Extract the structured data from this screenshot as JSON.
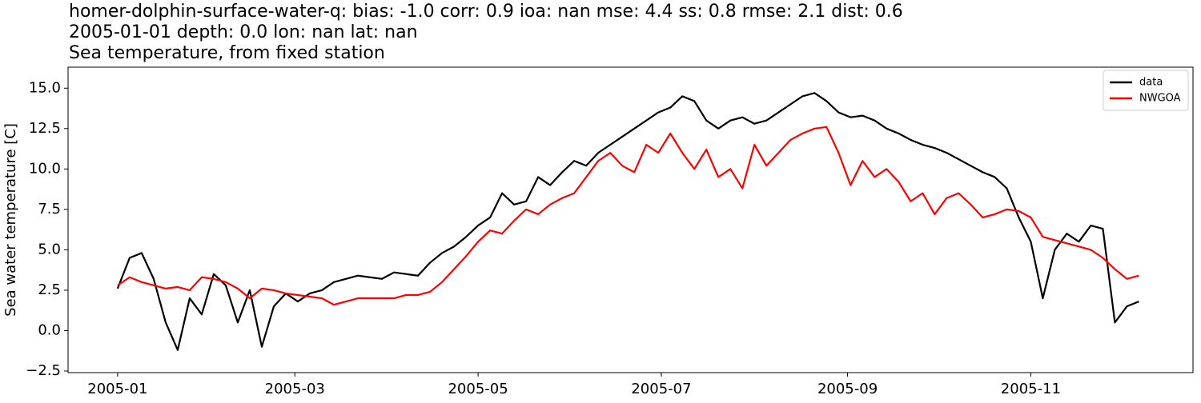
{
  "chart_data": {
    "type": "line",
    "title_lines": [
      "homer-dolphin-surface-water-q: bias: -1.0  corr: 0.9  ioa: nan  mse: 4.4  ss: 0.8  rmse: 2.1  dist: 0.6",
      "2005-01-01 depth: 0.0 lon: nan lat: nan",
      "Sea temperature, from fixed station"
    ],
    "ylabel": "Sea water temperature [C]",
    "x": [
      0,
      4,
      8,
      12,
      16,
      20,
      24,
      28,
      32,
      36,
      40,
      44,
      48,
      52,
      56,
      60,
      64,
      68,
      72,
      76,
      80,
      84,
      88,
      92,
      96,
      100,
      104,
      108,
      112,
      116,
      120,
      124,
      128,
      132,
      136,
      140,
      144,
      148,
      152,
      156,
      160,
      164,
      168,
      172,
      176,
      180,
      184,
      188,
      192,
      196,
      200,
      204,
      208,
      212,
      216,
      220,
      224,
      228,
      232,
      236,
      240,
      244,
      248,
      252,
      256,
      260,
      264,
      268,
      272,
      276,
      280,
      284,
      288,
      292,
      296,
      300,
      304,
      308,
      312,
      316,
      320,
      324,
      328,
      332,
      336,
      340
    ],
    "series": [
      {
        "name": "data",
        "color": "#000000",
        "values": [
          2.6,
          4.5,
          4.8,
          3.2,
          0.5,
          -1.2,
          2.0,
          1.0,
          3.5,
          2.8,
          0.5,
          2.5,
          -1.0,
          1.5,
          2.3,
          1.8,
          2.3,
          2.5,
          3.0,
          3.2,
          3.4,
          3.3,
          3.2,
          3.6,
          3.5,
          3.4,
          4.2,
          4.8,
          5.2,
          5.8,
          6.5,
          7.0,
          8.5,
          7.8,
          8.0,
          9.5,
          9.0,
          9.8,
          10.5,
          10.2,
          11.0,
          11.5,
          12.0,
          12.5,
          13.0,
          13.5,
          13.8,
          14.5,
          14.2,
          13.0,
          12.5,
          13.0,
          13.2,
          12.8,
          13.0,
          13.5,
          14.0,
          14.5,
          14.7,
          14.2,
          13.5,
          13.2,
          13.3,
          13.0,
          12.5,
          12.2,
          11.8,
          11.5,
          11.3,
          11.0,
          10.6,
          10.2,
          9.8,
          9.5,
          8.8,
          7.0,
          5.5,
          2.0,
          5.0,
          6.0,
          5.5,
          6.5,
          6.3,
          0.5,
          1.5,
          1.8
        ]
      },
      {
        "name": "NWGOA",
        "color": "#ff0000",
        "values": [
          2.8,
          3.3,
          3.0,
          2.8,
          2.6,
          2.7,
          2.5,
          3.3,
          3.2,
          3.0,
          2.6,
          2.0,
          2.6,
          2.5,
          2.3,
          2.2,
          2.1,
          2.0,
          1.6,
          1.8,
          2.0,
          2.0,
          2.0,
          2.0,
          2.2,
          2.2,
          2.4,
          3.0,
          3.8,
          4.6,
          5.5,
          6.2,
          6.0,
          6.8,
          7.5,
          7.2,
          7.8,
          8.2,
          8.5,
          9.5,
          10.5,
          11.0,
          10.2,
          9.8,
          11.5,
          11.0,
          12.2,
          11.0,
          10.0,
          11.2,
          9.5,
          10.0,
          8.8,
          11.5,
          10.2,
          11.0,
          11.8,
          12.2,
          12.5,
          12.6,
          11.0,
          9.0,
          10.5,
          9.5,
          10.0,
          9.2,
          8.0,
          8.5,
          7.2,
          8.2,
          8.5,
          7.8,
          7.0,
          7.2,
          7.5,
          7.4,
          7.0,
          5.8,
          5.6,
          5.4,
          5.2,
          5.0,
          4.5,
          3.8,
          3.2,
          3.4
        ]
      }
    ],
    "xlim": [
      -16.5,
      358
    ],
    "xticks": [
      {
        "value": 0,
        "label": "2005-01"
      },
      {
        "value": 59,
        "label": "2005-03"
      },
      {
        "value": 120,
        "label": "2005-05"
      },
      {
        "value": 181,
        "label": "2005-07"
      },
      {
        "value": 243,
        "label": "2005-09"
      },
      {
        "value": 304,
        "label": "2005-11"
      }
    ],
    "ylim": [
      -2.6,
      16.3
    ],
    "yticks": [
      {
        "value": -2.5,
        "label": "−2.5"
      },
      {
        "value": 0,
        "label": "0.0"
      },
      2.5,
      {
        "value": 5,
        "label": "5.0"
      },
      7.5,
      {
        "value": 10,
        "label": "10.0"
      },
      12.5,
      {
        "value": 15,
        "label": "15.0"
      }
    ],
    "legend": "upper right"
  }
}
